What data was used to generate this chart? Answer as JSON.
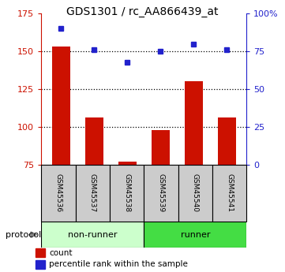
{
  "title": "GDS1301 / rc_AA866439_at",
  "samples": [
    "GSM45536",
    "GSM45537",
    "GSM45538",
    "GSM45539",
    "GSM45540",
    "GSM45541"
  ],
  "counts": [
    153,
    106,
    77,
    98,
    130,
    106
  ],
  "percentile_ranks": [
    90,
    76,
    68,
    75,
    80,
    76
  ],
  "ylim_left": [
    75,
    175
  ],
  "ylim_right": [
    0,
    100
  ],
  "yticks_left": [
    75,
    100,
    125,
    150,
    175
  ],
  "yticks_right": [
    0,
    25,
    50,
    75,
    100
  ],
  "ytick_labels_right": [
    "0",
    "25",
    "50",
    "75",
    "100%"
  ],
  "bar_color": "#cc1100",
  "dot_color": "#2222cc",
  "groups": [
    {
      "label": "non-runner",
      "span": [
        0,
        3
      ],
      "color": "#ccffcc"
    },
    {
      "label": "runner",
      "span": [
        3,
        6
      ],
      "color": "#44dd44"
    }
  ],
  "legend_labels": [
    "count",
    "percentile rank within the sample"
  ],
  "protocol_label": "protocol",
  "sample_box_color": "#cccccc"
}
